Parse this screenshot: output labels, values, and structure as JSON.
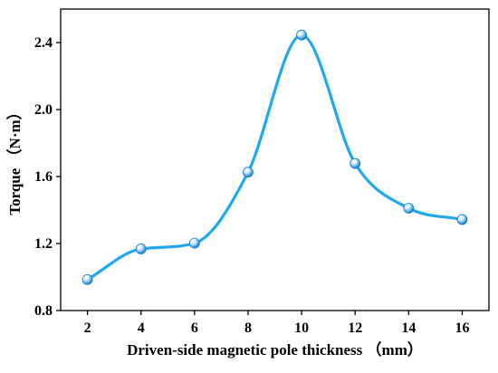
{
  "chart_data": {
    "type": "line",
    "title": "",
    "xlabel": "Driven-side magnetic pole thickness （mm）",
    "ylabel": "Torque （N·m）",
    "x": [
      2,
      4,
      6,
      8,
      10,
      12,
      14,
      16
    ],
    "series": [
      {
        "values": [
          0.985,
          1.168,
          1.202,
          1.626,
          2.445,
          1.678,
          1.411,
          1.343
        ]
      }
    ],
    "xlim": [
      1,
      17
    ],
    "ylim": [
      0.8,
      2.6
    ],
    "x_ticks": [
      "2",
      "4",
      "6",
      "8",
      "10",
      "12",
      "14",
      "16"
    ],
    "y_ticks": [
      "0.8",
      "1.2",
      "1.6",
      "2.0",
      "2.4"
    ],
    "grid": false,
    "smooth": true,
    "markers": "sphere",
    "colors": {
      "line": "#1ea8f0",
      "marker_light": "#d9f1ff",
      "marker_dark": "#0f7fcf",
      "axis": "#000000"
    }
  }
}
